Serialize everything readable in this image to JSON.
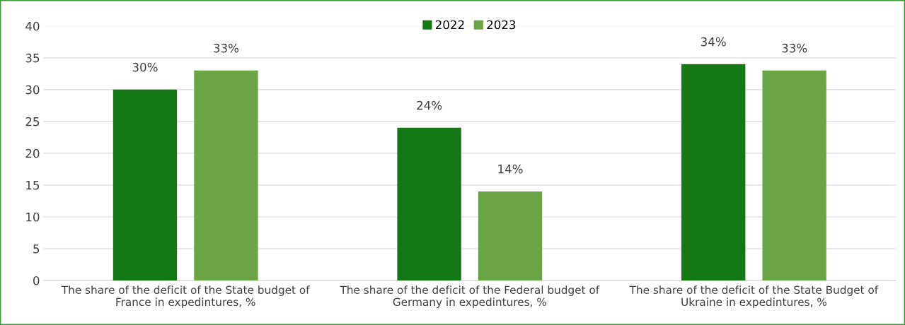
{
  "chart_data": {
    "type": "bar",
    "categories": [
      "The share of the deficit of the State budget of France in expedintures, %",
      "The share of the deficit of the Federal budget of Germany in expedintures, %",
      "The share of the deficit of the State Budget of Ukraine in expedintures, %"
    ],
    "series": [
      {
        "name": "2022",
        "color": "#147814",
        "values": [
          30,
          24,
          34
        ],
        "value_labels": [
          "30%",
          "24%",
          "34%"
        ]
      },
      {
        "name": "2023",
        "color": "#6aa444",
        "values": [
          33,
          14,
          33
        ],
        "value_labels": [
          "33%",
          "14%",
          "33%"
        ]
      }
    ],
    "ylim": [
      0,
      40
    ],
    "yticks": [
      0,
      5,
      10,
      15,
      20,
      25,
      30,
      35,
      40
    ],
    "grid": "y",
    "legend": "top"
  }
}
